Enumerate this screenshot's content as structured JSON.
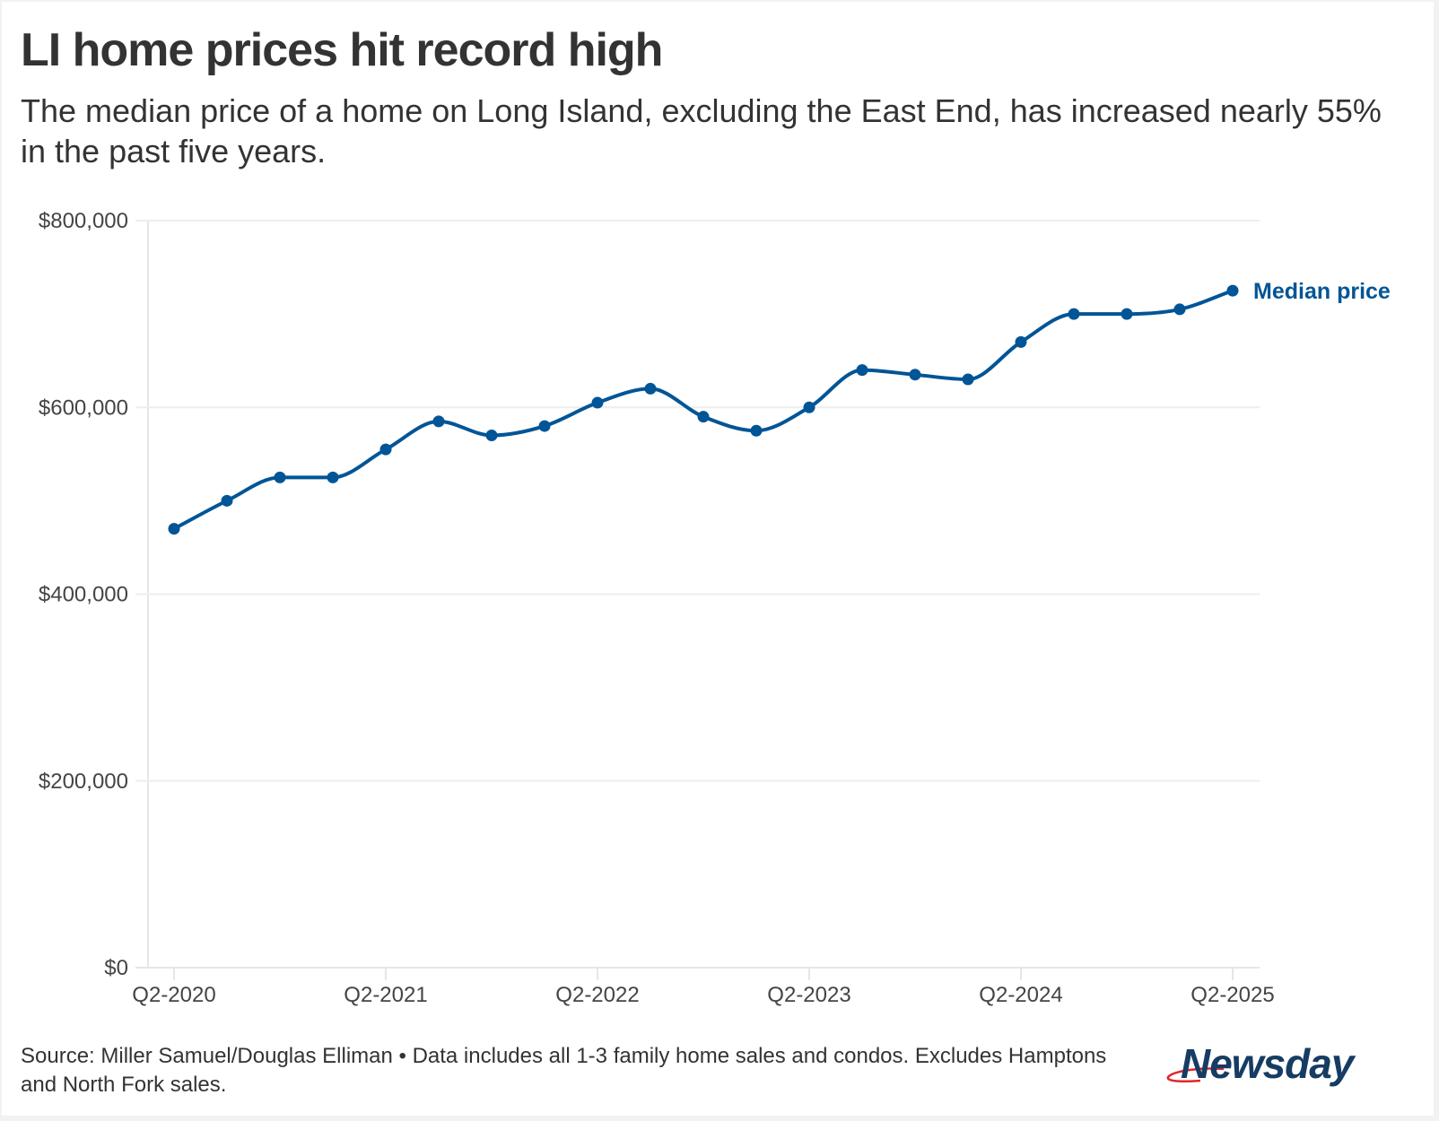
{
  "header": {
    "title": "LI home prices hit record high",
    "subtitle": "The median price of a home on Long Island, excluding the East End, has increased nearly 55% in the past five years."
  },
  "footer": {
    "source": "Source: Miller Samuel/Douglas Elliman • Data includes all 1-3 family home sales and condos. Excludes Hamptons and North Fork sales.",
    "logo_text": "Newsday"
  },
  "colors": {
    "line": "#005596",
    "grid": "#eeeeee",
    "text": "#333333",
    "logo": "#163c63",
    "logo_swoosh": "#e0282e"
  },
  "chart_data": {
    "type": "line",
    "title": "LI home prices hit record high",
    "subtitle": "The median price of a home on Long Island, excluding the East End, has increased nearly 55% in the past five years.",
    "xlabel": "",
    "ylabel": "",
    "ylim": [
      0,
      800000
    ],
    "yticks": [
      0,
      200000,
      400000,
      600000,
      800000
    ],
    "ytick_labels": [
      "$0",
      "$200,000",
      "$400,000",
      "$600,000",
      "$800,000"
    ],
    "xtick_labels": [
      "Q2-2020",
      "Q2-2021",
      "Q2-2022",
      "Q2-2023",
      "Q2-2024",
      "Q2-2025"
    ],
    "xtick_indices": [
      0,
      4,
      8,
      12,
      16,
      20
    ],
    "grid": true,
    "legend": "direct-label-right",
    "x": [
      "Q2-2020",
      "Q3-2020",
      "Q4-2020",
      "Q1-2021",
      "Q2-2021",
      "Q3-2021",
      "Q4-2021",
      "Q1-2022",
      "Q2-2022",
      "Q3-2022",
      "Q4-2022",
      "Q1-2023",
      "Q2-2023",
      "Q3-2023",
      "Q4-2023",
      "Q1-2024",
      "Q2-2024",
      "Q3-2024",
      "Q4-2024",
      "Q1-2025",
      "Q2-2025"
    ],
    "series": [
      {
        "name": "Median price",
        "values": [
          470000,
          500000,
          525000,
          525000,
          555000,
          585000,
          570000,
          580000,
          605000,
          620000,
          590000,
          575000,
          600000,
          640000,
          635000,
          630000,
          670000,
          700000,
          700000,
          705000,
          725000
        ]
      }
    ]
  }
}
